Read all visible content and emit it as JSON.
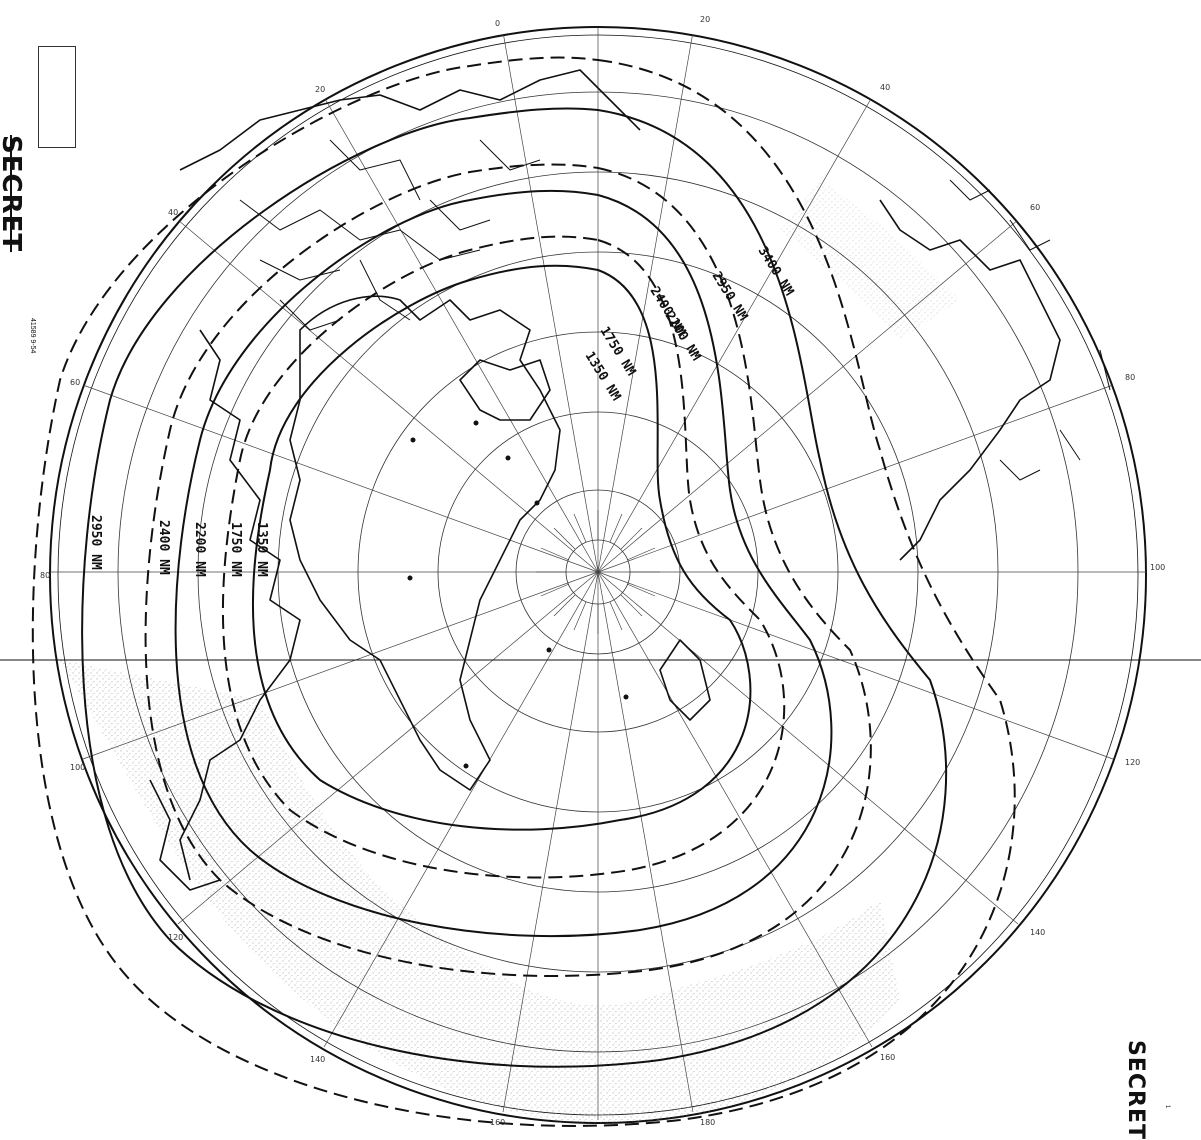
{
  "classification": {
    "top_stamp": "SECRET",
    "bottom_stamp": "SECRET",
    "stamp_box_text": "",
    "serial": "41589 9-54",
    "bottom_note": "1"
  },
  "range_rings": [
    {
      "label": "1350 NM",
      "style": "solid"
    },
    {
      "label": "1750 NM",
      "style": "dashed"
    },
    {
      "label": "2200 NM",
      "style": "solid"
    },
    {
      "label": "2400 NM",
      "style": "dashed"
    },
    {
      "label": "2950 NM",
      "style": "solid"
    },
    {
      "label": "3400 NM",
      "style": "dashed"
    }
  ],
  "longitude_labels": [
    "20",
    "40",
    "60",
    "80",
    "100",
    "120",
    "140",
    "160",
    "180",
    "160",
    "140",
    "120",
    "100",
    "80",
    "60",
    "40",
    "20",
    "0"
  ],
  "colors": {
    "ink": "#111111",
    "stipple": "#8a8a8a",
    "paper": "#ffffff"
  }
}
